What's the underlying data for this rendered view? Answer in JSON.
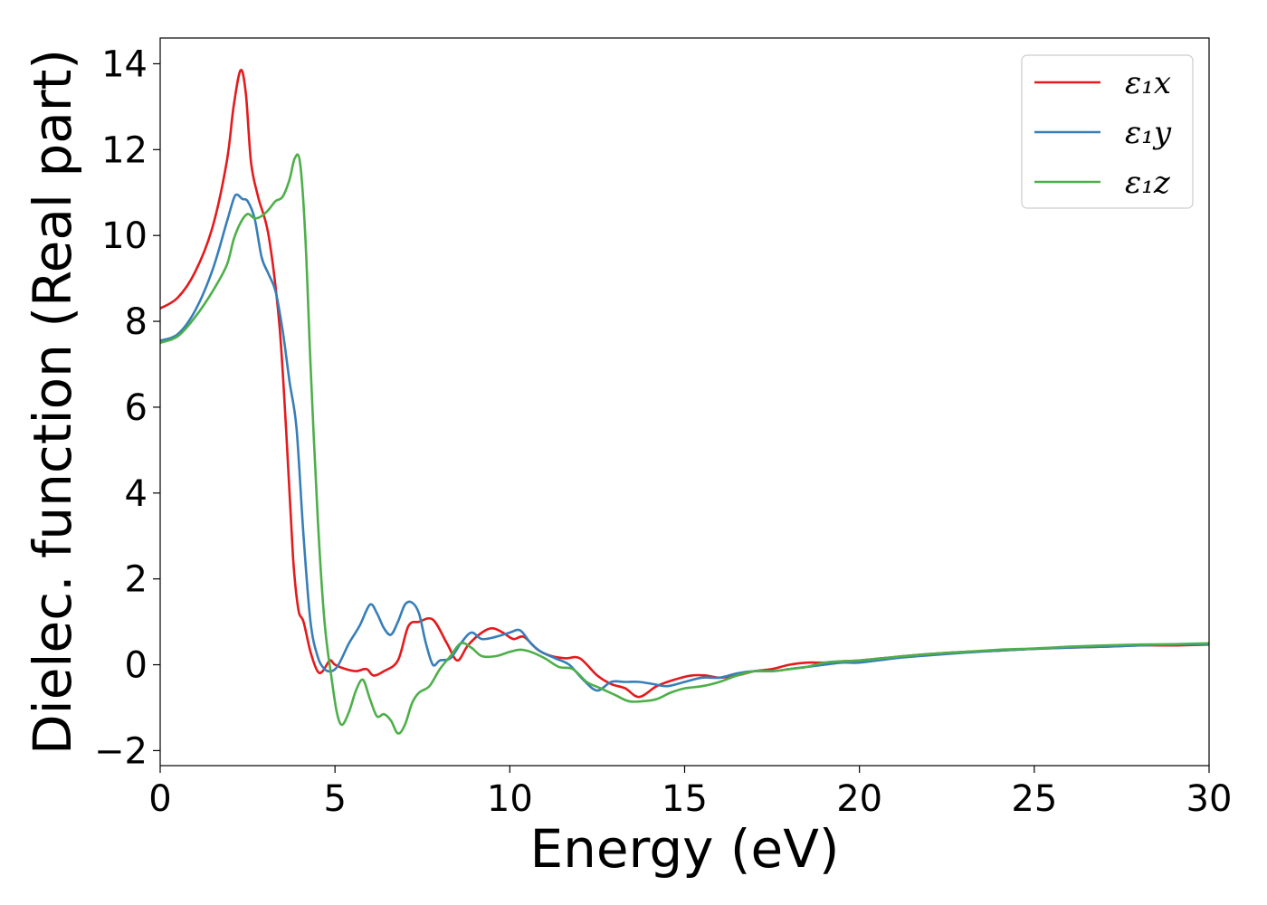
{
  "chart_data": {
    "type": "line",
    "title": "",
    "xlabel": "Energy (eV)",
    "ylabel": "Dielec. function (Real part)",
    "xlim": [
      0,
      30
    ],
    "ylim": [
      -2.35,
      14.6
    ],
    "xticks": [
      0,
      5,
      10,
      15,
      20,
      25,
      30
    ],
    "yticks": [
      -2,
      0,
      2,
      4,
      6,
      8,
      10,
      12,
      14
    ],
    "xtick_labels": [
      "0",
      "5",
      "10",
      "15",
      "20",
      "25",
      "30"
    ],
    "ytick_labels": [
      "−2",
      "0",
      "2",
      "4",
      "6",
      "8",
      "10",
      "12",
      "14"
    ],
    "grid": false,
    "legend_position": "top-right",
    "series": [
      {
        "name": "ε₁x",
        "color": "#e41a1c",
        "x": [
          0,
          0.5,
          1.0,
          1.5,
          1.9,
          2.1,
          2.3,
          2.45,
          2.6,
          2.8,
          3.1,
          3.4,
          3.6,
          3.8,
          3.95,
          4.1,
          4.3,
          4.5,
          4.65,
          4.85,
          5.0,
          5.3,
          5.6,
          5.9,
          6.1,
          6.4,
          6.8,
          7.1,
          7.4,
          7.8,
          8.2,
          8.5,
          8.8,
          9.2,
          9.5,
          9.8,
          10.1,
          10.4,
          10.8,
          11.2,
          11.6,
          12.0,
          12.5,
          12.9,
          13.3,
          13.7,
          14.2,
          14.7,
          15.2,
          15.6,
          16.0,
          16.5,
          17.0,
          17.5,
          18.0,
          18.5,
          19.0,
          19.5,
          20.0,
          21.0,
          22.0,
          23.0,
          24.0,
          25.0,
          26.0,
          27.0,
          28.0,
          29.0,
          30.0
        ],
        "y": [
          8.3,
          8.55,
          9.15,
          10.2,
          11.7,
          13.0,
          13.85,
          13.3,
          11.7,
          10.9,
          10.0,
          8.0,
          5.5,
          2.5,
          1.3,
          1.0,
          0.3,
          -0.15,
          -0.15,
          0.1,
          0.0,
          -0.1,
          -0.15,
          -0.1,
          -0.25,
          -0.15,
          0.1,
          0.9,
          1.0,
          1.05,
          0.5,
          0.1,
          0.45,
          0.75,
          0.85,
          0.75,
          0.6,
          0.65,
          0.35,
          0.2,
          0.15,
          0.15,
          -0.25,
          -0.45,
          -0.55,
          -0.75,
          -0.5,
          -0.35,
          -0.25,
          -0.25,
          -0.3,
          -0.25,
          -0.15,
          -0.1,
          0.0,
          0.05,
          0.05,
          0.08,
          0.1,
          0.18,
          0.25,
          0.3,
          0.33,
          0.37,
          0.4,
          0.42,
          0.45,
          0.45,
          0.47
        ]
      },
      {
        "name": "ε₁y",
        "color": "#377eb8",
        "x": [
          0,
          0.5,
          1.0,
          1.5,
          1.9,
          2.1,
          2.2,
          2.35,
          2.5,
          2.7,
          2.9,
          3.1,
          3.3,
          3.5,
          3.7,
          3.9,
          4.1,
          4.3,
          4.5,
          4.7,
          4.9,
          5.1,
          5.4,
          5.7,
          6.0,
          6.2,
          6.4,
          6.6,
          6.8,
          7.0,
          7.2,
          7.4,
          7.6,
          7.8,
          8.0,
          8.3,
          8.6,
          8.9,
          9.2,
          9.6,
          10.0,
          10.3,
          10.6,
          10.9,
          11.3,
          11.7,
          12.1,
          12.5,
          12.9,
          13.3,
          13.7,
          14.1,
          14.5,
          15.0,
          15.5,
          16.0,
          16.5,
          17.0,
          17.5,
          18.0,
          18.5,
          19.0,
          19.5,
          20.0,
          21.0,
          22.0,
          23.0,
          24.0,
          25.0,
          26.0,
          27.0,
          28.0,
          29.0,
          30.0
        ],
        "y": [
          7.55,
          7.7,
          8.25,
          9.2,
          10.3,
          10.85,
          10.95,
          10.85,
          10.8,
          10.4,
          9.5,
          9.1,
          8.7,
          7.8,
          6.6,
          5.5,
          3.0,
          1.0,
          0.2,
          -0.1,
          -0.15,
          0.0,
          0.5,
          0.9,
          1.4,
          1.2,
          0.85,
          0.7,
          1.0,
          1.4,
          1.45,
          1.2,
          0.5,
          0.0,
          0.1,
          0.15,
          0.5,
          0.75,
          0.6,
          0.65,
          0.75,
          0.8,
          0.5,
          0.3,
          0.15,
          0.0,
          -0.35,
          -0.6,
          -0.4,
          -0.4,
          -0.4,
          -0.45,
          -0.5,
          -0.4,
          -0.3,
          -0.3,
          -0.2,
          -0.15,
          -0.15,
          -0.1,
          -0.05,
          0.0,
          0.05,
          0.05,
          0.15,
          0.22,
          0.28,
          0.33,
          0.37,
          0.4,
          0.42,
          0.45,
          0.47,
          0.48
        ]
      },
      {
        "name": "ε₁z",
        "color": "#4daf4a",
        "x": [
          0,
          0.5,
          1.0,
          1.5,
          1.9,
          2.1,
          2.3,
          2.5,
          2.7,
          2.9,
          3.1,
          3.3,
          3.5,
          3.7,
          3.85,
          4.0,
          4.15,
          4.3,
          4.5,
          4.7,
          4.9,
          5.05,
          5.2,
          5.4,
          5.6,
          5.8,
          6.0,
          6.2,
          6.4,
          6.6,
          6.8,
          7.0,
          7.2,
          7.4,
          7.7,
          8.0,
          8.3,
          8.6,
          8.9,
          9.2,
          9.6,
          10.0,
          10.3,
          10.6,
          11.0,
          11.4,
          11.8,
          12.2,
          12.6,
          13.0,
          13.4,
          13.8,
          14.2,
          14.6,
          15.0,
          15.5,
          16.0,
          16.5,
          17.0,
          17.5,
          18.0,
          18.5,
          19.0,
          19.5,
          20.0,
          21.0,
          22.0,
          23.0,
          24.0,
          25.0,
          26.0,
          27.0,
          28.0,
          29.0,
          30.0
        ],
        "y": [
          7.5,
          7.65,
          8.1,
          8.7,
          9.3,
          9.9,
          10.3,
          10.5,
          10.4,
          10.45,
          10.6,
          10.8,
          10.9,
          11.3,
          11.8,
          11.7,
          10.0,
          7.0,
          3.5,
          1.0,
          -0.3,
          -1.1,
          -1.4,
          -1.1,
          -0.6,
          -0.35,
          -0.8,
          -1.2,
          -1.15,
          -1.3,
          -1.6,
          -1.4,
          -0.9,
          -0.65,
          -0.5,
          -0.1,
          0.2,
          0.5,
          0.4,
          0.2,
          0.2,
          0.3,
          0.35,
          0.3,
          0.15,
          -0.05,
          -0.1,
          -0.4,
          -0.55,
          -0.7,
          -0.85,
          -0.85,
          -0.8,
          -0.65,
          -0.55,
          -0.5,
          -0.4,
          -0.25,
          -0.15,
          -0.15,
          -0.1,
          -0.05,
          0.05,
          0.08,
          0.1,
          0.18,
          0.25,
          0.3,
          0.35,
          0.38,
          0.42,
          0.45,
          0.47,
          0.48,
          0.5
        ]
      }
    ]
  }
}
